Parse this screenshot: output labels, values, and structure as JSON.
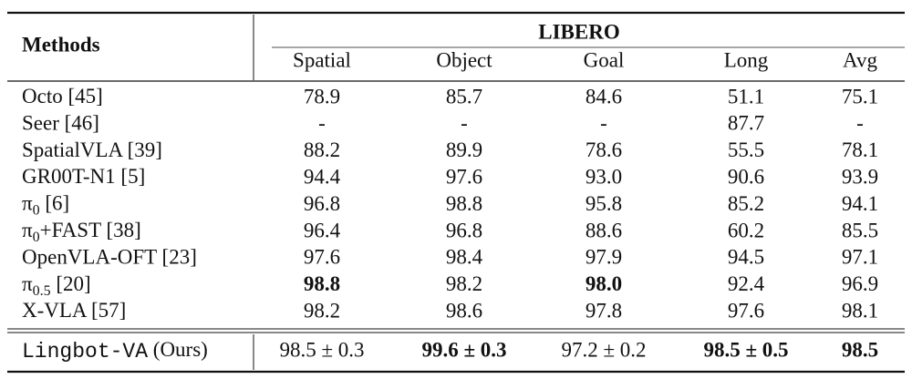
{
  "table": {
    "header": {
      "methods": "Methods",
      "group": "LIBERO",
      "columns": [
        "Spatial",
        "Object",
        "Goal",
        "Long",
        "Avg"
      ]
    },
    "rows": [
      {
        "method": {
          "text": "Octo [45]"
        },
        "cells": [
          "78.9",
          "85.7",
          "84.6",
          "51.1",
          "75.1"
        ],
        "bold": []
      },
      {
        "method": {
          "text": "Seer [46]"
        },
        "cells": [
          "-",
          "-",
          "-",
          "87.7",
          "-"
        ],
        "bold": []
      },
      {
        "method": {
          "text": "SpatialVLA [39]"
        },
        "cells": [
          "88.2",
          "89.9",
          "78.6",
          "55.5",
          "78.1"
        ],
        "bold": []
      },
      {
        "method": {
          "text": "GR00T-N1 [5]"
        },
        "cells": [
          "94.4",
          "97.6",
          "93.0",
          "90.6",
          "93.9"
        ],
        "bold": []
      },
      {
        "method": {
          "text": "π",
          "sub": "0",
          "rest": " [6]"
        },
        "cells": [
          "96.8",
          "98.8",
          "95.8",
          "85.2",
          "94.1"
        ],
        "bold": []
      },
      {
        "method": {
          "text": "π",
          "sub": "0",
          "rest": "+FAST [38]"
        },
        "cells": [
          "96.4",
          "96.8",
          "88.6",
          "60.2",
          "85.5"
        ],
        "bold": []
      },
      {
        "method": {
          "text": "OpenVLA-OFT [23]"
        },
        "cells": [
          "97.6",
          "98.4",
          "97.9",
          "94.5",
          "97.1"
        ],
        "bold": []
      },
      {
        "method": {
          "text": "π",
          "sub": "0.5",
          "rest": " [20]"
        },
        "cells": [
          "98.8",
          "98.2",
          "98.0",
          "92.4",
          "96.9"
        ],
        "bold": [
          0,
          2
        ]
      },
      {
        "method": {
          "text": "X-VLA [57]"
        },
        "cells": [
          "98.2",
          "98.6",
          "97.8",
          "97.6",
          "98.1"
        ],
        "bold": []
      }
    ],
    "ours": {
      "method": {
        "mono": "Lingbot-VA",
        "rest": " (Ours)"
      },
      "cells": [
        "98.5 ± 0.3",
        "99.6 ± 0.3",
        "97.2 ± 0.2",
        "98.5 ± 0.5",
        "98.5"
      ],
      "bold": [
        1,
        3,
        4
      ]
    }
  }
}
